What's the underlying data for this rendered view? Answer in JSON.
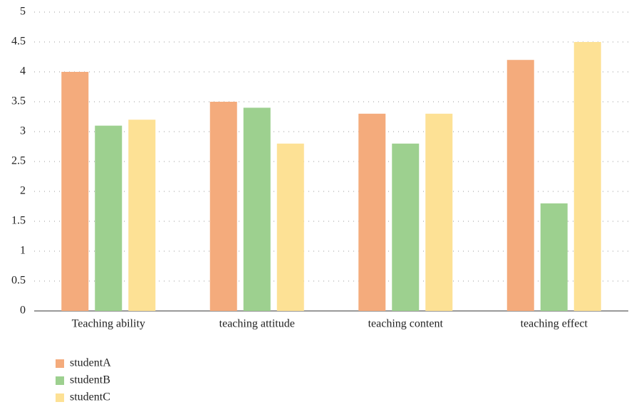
{
  "chart_data": {
    "type": "bar",
    "categories": [
      "Teaching ability",
      "teaching attitude",
      "teaching content",
      "teaching effect"
    ],
    "series": [
      {
        "name": "studentA",
        "color": "#f4ab7c",
        "values": [
          4,
          3.5,
          3.3,
          4.2
        ]
      },
      {
        "name": "studentB",
        "color": "#9dd08f",
        "values": [
          3.1,
          3.4,
          2.8,
          1.8
        ]
      },
      {
        "name": "studentC",
        "color": "#fde195",
        "values": [
          3.2,
          2.8,
          3.3,
          4.5
        ]
      }
    ],
    "ylim": [
      0,
      5
    ],
    "yticks": [
      0,
      0.5,
      1,
      1.5,
      2,
      2.5,
      3,
      3.5,
      4,
      4.5,
      5
    ],
    "grid": true
  }
}
